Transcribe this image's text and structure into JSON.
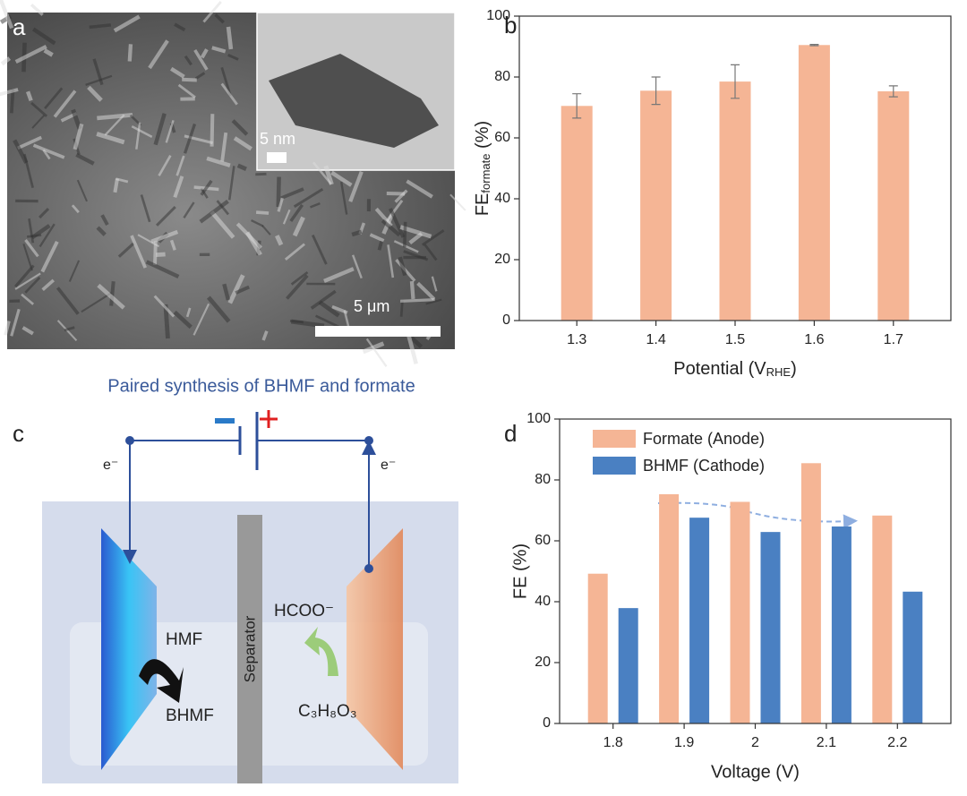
{
  "panel_labels": {
    "a": "a",
    "b": "b",
    "c": "c",
    "d": "d"
  },
  "panel_a": {
    "inset_scale": "5 nm",
    "scale": "5 μm"
  },
  "panel_c": {
    "title": "Paired synthesis of BHMF and formate",
    "electron_left": "e⁻",
    "electron_right": "e⁻",
    "hmf": "HMF",
    "bhmf": "BHMF",
    "separator": "Separator",
    "hcoo": "HCOO⁻",
    "glycerol": "C₃H₈O₃"
  },
  "chart_data": [
    {
      "type": "bar",
      "ylabel": {
        "main": "FE",
        "sub": "formate",
        "tail": " (%)"
      },
      "xlabel": {
        "main": "Potential (V",
        "sub": "RHE",
        "tail": ")"
      },
      "categories": [
        "1.3",
        "1.4",
        "1.5",
        "1.6",
        "1.7"
      ],
      "series": [
        {
          "name": "FE formate",
          "color": "#f5b595",
          "values": [
            70.5,
            75.5,
            78.5,
            90.5,
            75.3
          ],
          "errors": [
            4,
            4.5,
            5.5,
            0.2,
            1.8
          ]
        }
      ],
      "ylim": [
        0,
        100
      ],
      "yticks": [
        0,
        20,
        40,
        60,
        80,
        100
      ]
    },
    {
      "type": "bar",
      "ylabel": "FE (%)",
      "xlabel": "Voltage (V)",
      "categories": [
        "1.8",
        "1.9",
        "2",
        "2.1",
        "2.2"
      ],
      "series": [
        {
          "name": "Formate (Anode)",
          "color": "#f5b595",
          "values": [
            49.2,
            75.3,
            72.8,
            85.5,
            68.3
          ]
        },
        {
          "name": "BHMF (Cathode)",
          "color": "#4a80c2",
          "values": [
            37.9,
            67.6,
            62.9,
            64.7,
            43.3
          ]
        }
      ],
      "ylim": [
        0,
        100
      ],
      "yticks": [
        0,
        20,
        40,
        60,
        80,
        100
      ],
      "legend": "top-left"
    }
  ]
}
